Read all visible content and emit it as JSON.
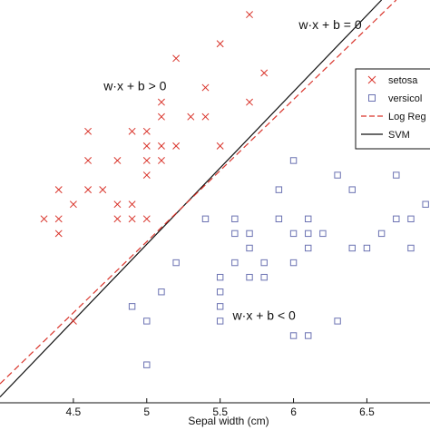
{
  "chart_data": {
    "type": "scatter",
    "xlabel": "Sepal width (cm)",
    "ylabel": "",
    "xlim": [
      4.0,
      6.93
    ],
    "ylim": [
      1.74,
      4.5
    ],
    "x_ticks": [
      4.5,
      5,
      5.5,
      6,
      6.5
    ],
    "x_tick_labels": [
      "4.5",
      "5",
      "5.5",
      "6",
      "6.5"
    ],
    "grid": false,
    "legend_position": "top-right",
    "legend_entries": [
      {
        "label": "setosa",
        "marker": "x",
        "color": "#d9342b"
      },
      {
        "label": "versicol",
        "marker": "square",
        "color": "#6b72b2"
      },
      {
        "label": "Log Reg",
        "marker": "dashed-line",
        "color": "#d9342b"
      },
      {
        "label": "SVM",
        "marker": "solid-line",
        "color": "#111111"
      }
    ],
    "annotations": [
      {
        "text": "w·x + b = 0",
        "x": 6.25,
        "y": 4.3
      },
      {
        "text": "w·x + b > 0",
        "x": 4.92,
        "y": 3.88
      },
      {
        "text": "w·x + b < 0",
        "x": 5.8,
        "y": 2.31
      }
    ],
    "lines": [
      {
        "name": "SVM",
        "style": "solid",
        "color": "#111111",
        "x": [
          4.0,
          6.6
        ],
        "y": [
          1.78,
          4.5
        ]
      },
      {
        "name": "Log Reg",
        "style": "dashed",
        "color": "#d9342b",
        "x": [
          4.0,
          6.7
        ],
        "y": [
          1.87,
          4.5
        ]
      }
    ],
    "series": [
      {
        "name": "setosa",
        "marker": "x",
        "color": "#d9342b",
        "points": [
          [
            5.7,
            4.4
          ],
          [
            5.5,
            4.2
          ],
          [
            5.2,
            4.1
          ],
          [
            5.4,
            3.9
          ],
          [
            5.8,
            4.0
          ],
          [
            5.1,
            3.8
          ],
          [
            5.7,
            3.8
          ],
          [
            5.1,
            3.7
          ],
          [
            5.3,
            3.7
          ],
          [
            5.4,
            3.7
          ],
          [
            4.6,
            3.6
          ],
          [
            4.9,
            3.6
          ],
          [
            5.0,
            3.6
          ],
          [
            5.0,
            3.5
          ],
          [
            5.1,
            3.5
          ],
          [
            5.2,
            3.5
          ],
          [
            5.5,
            3.5
          ],
          [
            4.6,
            3.4
          ],
          [
            4.8,
            3.4
          ],
          [
            5.0,
            3.4
          ],
          [
            5.1,
            3.4
          ],
          [
            4.4,
            3.2
          ],
          [
            4.6,
            3.2
          ],
          [
            4.7,
            3.2
          ],
          [
            5.0,
            3.3
          ],
          [
            4.5,
            3.1
          ],
          [
            4.8,
            3.1
          ],
          [
            4.9,
            3.1
          ],
          [
            4.3,
            3.0
          ],
          [
            4.4,
            3.0
          ],
          [
            4.8,
            3.0
          ],
          [
            4.9,
            3.0
          ],
          [
            5.0,
            3.0
          ],
          [
            4.4,
            2.9
          ],
          [
            4.5,
            2.3
          ]
        ]
      },
      {
        "name": "versicol",
        "marker": "square",
        "color": "#6b72b2",
        "points": [
          [
            6.0,
            3.4
          ],
          [
            6.3,
            3.3
          ],
          [
            6.7,
            3.3
          ],
          [
            5.9,
            3.2
          ],
          [
            6.4,
            3.2
          ],
          [
            5.4,
            3.0
          ],
          [
            5.6,
            3.0
          ],
          [
            5.9,
            3.0
          ],
          [
            6.1,
            3.0
          ],
          [
            6.7,
            3.0
          ],
          [
            6.8,
            3.0
          ],
          [
            6.9,
            3.1
          ],
          [
            5.6,
            2.9
          ],
          [
            5.7,
            2.9
          ],
          [
            6.0,
            2.9
          ],
          [
            6.1,
            2.9
          ],
          [
            6.2,
            2.9
          ],
          [
            6.6,
            2.9
          ],
          [
            5.7,
            2.8
          ],
          [
            6.1,
            2.8
          ],
          [
            6.4,
            2.8
          ],
          [
            6.5,
            2.8
          ],
          [
            6.8,
            2.8
          ],
          [
            5.6,
            2.7
          ],
          [
            5.8,
            2.7
          ],
          [
            6.0,
            2.7
          ],
          [
            5.2,
            2.7
          ],
          [
            5.8,
            2.6
          ],
          [
            5.5,
            2.6
          ],
          [
            5.7,
            2.6
          ],
          [
            5.5,
            2.5
          ],
          [
            5.1,
            2.5
          ],
          [
            5.5,
            2.4
          ],
          [
            4.9,
            2.4
          ],
          [
            5.5,
            2.3
          ],
          [
            5.0,
            2.3
          ],
          [
            6.3,
            2.3
          ],
          [
            6.1,
            2.2
          ],
          [
            6.0,
            2.2
          ],
          [
            5.0,
            2.0
          ]
        ]
      }
    ]
  }
}
